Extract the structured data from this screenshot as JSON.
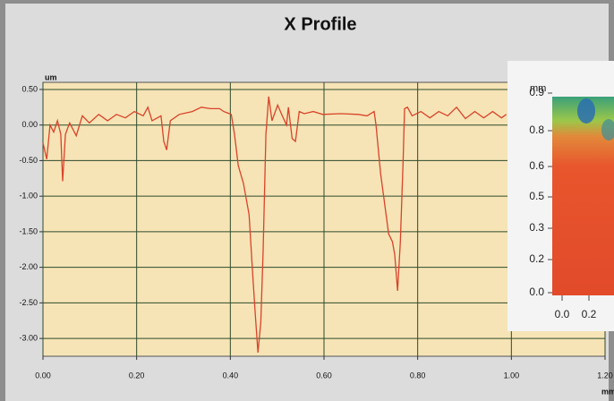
{
  "chart_data": {
    "type": "line",
    "title": "X Profile",
    "y_unit": "um",
    "x_unit": "mm",
    "color": "#d8432a",
    "grid": true,
    "xlim": [
      0,
      1.2
    ],
    "ylim": [
      -3.25,
      0.6
    ],
    "xticks": [
      {
        "value": 0,
        "label": "0.00"
      },
      {
        "value": 0.2,
        "label": "0.20"
      },
      {
        "value": 0.4,
        "label": "0.40"
      },
      {
        "value": 0.6,
        "label": "0.60"
      },
      {
        "value": 0.8,
        "label": "0.80"
      },
      {
        "value": 1,
        "label": "1.00"
      },
      {
        "value": 1.2,
        "label": "1.20"
      }
    ],
    "yticks": [
      {
        "value": 0.5,
        "label": "0.50"
      },
      {
        "value": 0,
        "label": "0.00"
      },
      {
        "value": -0.5,
        "label": "-0.50"
      },
      {
        "value": -1,
        "label": "-1.00"
      },
      {
        "value": -1.5,
        "label": "-1.50"
      },
      {
        "value": -2,
        "label": "-2.00"
      },
      {
        "value": -2.5,
        "label": "-2.50"
      },
      {
        "value": -3,
        "label": "-3.00"
      }
    ],
    "x": [
      0,
      0.008,
      0.015,
      0.023,
      0.031,
      0.038,
      0.042,
      0.048,
      0.057,
      0.071,
      0.084,
      0.099,
      0.119,
      0.138,
      0.157,
      0.176,
      0.195,
      0.214,
      0.224,
      0.233,
      0.252,
      0.258,
      0.264,
      0.272,
      0.291,
      0.319,
      0.338,
      0.358,
      0.377,
      0.386,
      0.402,
      0.409,
      0.417,
      0.428,
      0.44,
      0.447,
      0.453,
      0.459,
      0.465,
      0.47,
      0.476,
      0.482,
      0.489,
      0.501,
      0.511,
      0.52,
      0.524,
      0.532,
      0.539,
      0.547,
      0.558,
      0.577,
      0.597,
      0.635,
      0.673,
      0.692,
      0.707,
      0.711,
      0.721,
      0.73,
      0.738,
      0.746,
      0.751,
      0.757,
      0.763,
      0.769,
      0.772,
      0.778,
      0.788,
      0.807,
      0.826,
      0.845,
      0.864,
      0.883,
      0.902,
      0.922,
      0.941,
      0.96,
      0.979,
      0.989
    ],
    "values": [
      -0.25,
      -0.48,
      0,
      -0.1,
      0.06,
      -0.13,
      -0.79,
      -0.13,
      0.03,
      -0.15,
      0.13,
      0.03,
      0.15,
      0.06,
      0.15,
      0.1,
      0.19,
      0.13,
      0.25,
      0.06,
      0.13,
      -0.23,
      -0.35,
      0.06,
      0.15,
      0.19,
      0.25,
      0.23,
      0.23,
      0.19,
      0.15,
      -0.13,
      -0.57,
      -0.82,
      -1.26,
      -2.01,
      -2.64,
      -3.2,
      -2.77,
      -1.76,
      -0.13,
      0.4,
      0.06,
      0.28,
      0.13,
      0,
      0.25,
      -0.19,
      -0.23,
      0.19,
      0.16,
      0.19,
      0.15,
      0.16,
      0.15,
      0.13,
      0.19,
      0,
      -0.69,
      -1.13,
      -1.53,
      -1.64,
      -1.82,
      -2.33,
      -1.64,
      -0.5,
      0.23,
      0.25,
      0.13,
      0.19,
      0.1,
      0.19,
      0.13,
      0.25,
      0.09,
      0.19,
      0.1,
      0.19,
      0.1,
      0.15
    ]
  },
  "inset": {
    "axis_label": "mm",
    "yticks": [
      "0.9",
      "0.8",
      "0.6",
      "0.5",
      "0.3",
      "0.2",
      "0.0"
    ],
    "xticks": [
      "0.0",
      "0.2"
    ]
  }
}
